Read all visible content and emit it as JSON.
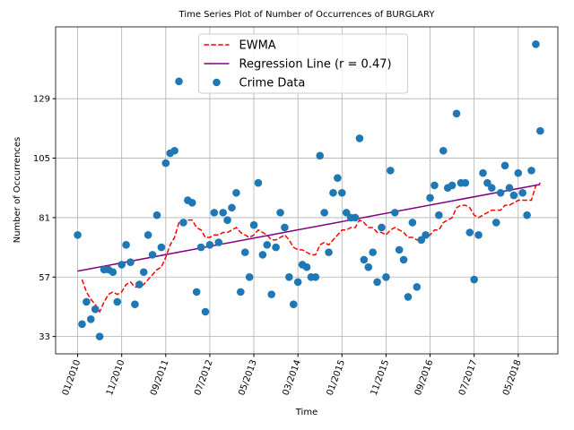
{
  "chart_data": {
    "type": "scatter",
    "title": "Time Series Plot of Number of Occurrences of BURGLARY",
    "xlabel": "Time",
    "ylabel": "Number of Occurrences",
    "x": [
      "2010-01",
      "2010-02",
      "2010-03",
      "2010-04",
      "2010-05",
      "2010-06",
      "2010-07",
      "2010-08",
      "2010-09",
      "2010-10",
      "2010-11",
      "2010-12",
      "2011-01",
      "2011-02",
      "2011-03",
      "2011-04",
      "2011-05",
      "2011-06",
      "2011-07",
      "2011-08",
      "2011-09",
      "2011-10",
      "2011-11",
      "2011-12",
      "2012-01",
      "2012-02",
      "2012-03",
      "2012-04",
      "2012-05",
      "2012-06",
      "2012-07",
      "2012-08",
      "2012-09",
      "2012-10",
      "2012-11",
      "2012-12",
      "2013-01",
      "2013-02",
      "2013-03",
      "2013-04",
      "2013-05",
      "2013-06",
      "2013-07",
      "2013-08",
      "2013-09",
      "2013-10",
      "2013-11",
      "2013-12",
      "2014-01",
      "2014-02",
      "2014-03",
      "2014-04",
      "2014-05",
      "2014-06",
      "2014-07",
      "2014-08",
      "2014-09",
      "2014-10",
      "2014-11",
      "2014-12",
      "2015-01",
      "2015-02",
      "2015-03",
      "2015-04",
      "2015-05",
      "2015-06",
      "2015-07",
      "2015-08",
      "2015-09",
      "2015-10",
      "2015-11",
      "2015-12",
      "2016-01",
      "2016-02",
      "2016-03",
      "2016-04",
      "2016-05",
      "2016-06",
      "2016-07",
      "2016-08",
      "2016-09",
      "2016-10",
      "2016-11",
      "2016-12",
      "2017-01",
      "2017-02",
      "2017-03",
      "2017-04",
      "2017-05",
      "2017-06",
      "2017-07",
      "2017-08",
      "2017-09",
      "2017-10",
      "2017-11",
      "2017-12",
      "2018-01",
      "2018-02",
      "2018-03",
      "2018-04",
      "2018-05",
      "2018-06",
      "2018-07",
      "2018-08",
      "2018-09",
      "2018-10"
    ],
    "series": [
      {
        "name": "EWMA",
        "type": "line",
        "linestyle": "dashed",
        "color": "#ff0000",
        "values": [
          null,
          56,
          51,
          48,
          46,
          43,
          47,
          50,
          51,
          50,
          51,
          54,
          55,
          53,
          53,
          54,
          56,
          58,
          60,
          61,
          65,
          70,
          73,
          79,
          79,
          80,
          80,
          77,
          76,
          73,
          73,
          74,
          74,
          75,
          75,
          76,
          77,
          75,
          74,
          73,
          74,
          76,
          75,
          74,
          72,
          72,
          73,
          74,
          72,
          69,
          68,
          68,
          67,
          66,
          66,
          70,
          71,
          70,
          72,
          74,
          76,
          76,
          77,
          77,
          80,
          79,
          77,
          77,
          75,
          75,
          74,
          76,
          77,
          76,
          75,
          73,
          73,
          72,
          72,
          73,
          74,
          76,
          76,
          79,
          80,
          81,
          85,
          86,
          86,
          85,
          82,
          81,
          82,
          83,
          84,
          84,
          84,
          86,
          86,
          87,
          88,
          88,
          88,
          88,
          94,
          95
        ]
      },
      {
        "name": "Regression Line (r = 0.47)",
        "type": "line",
        "linestyle": "solid",
        "color": "#800080",
        "x": [
          "2010-01",
          "2018-10"
        ],
        "values": [
          59.4,
          94.4
        ]
      },
      {
        "name": "Crime Data",
        "type": "scatter",
        "color": "#1f77b4",
        "values": [
          74,
          38,
          47,
          40,
          44,
          33,
          60,
          60,
          59,
          47,
          62,
          70,
          63,
          46,
          54,
          59,
          74,
          66,
          82,
          69,
          103,
          107,
          108,
          136,
          79,
          88,
          87,
          51,
          69,
          43,
          70,
          83,
          71,
          83,
          80,
          85,
          91,
          51,
          67,
          57,
          78,
          95,
          66,
          70,
          50,
          69,
          83,
          77,
          57,
          46,
          55,
          62,
          61,
          57,
          57,
          106,
          83,
          67,
          91,
          97,
          91,
          83,
          81,
          81,
          113,
          64,
          61,
          67,
          55,
          77,
          57,
          100,
          83,
          68,
          64,
          49,
          79,
          53,
          72,
          74,
          89,
          94,
          82,
          108,
          93,
          94,
          123,
          95,
          95,
          75,
          56,
          74,
          99,
          95,
          93,
          79,
          91,
          102,
          93,
          90,
          99,
          91,
          82,
          100,
          151,
          116
        ]
      }
    ],
    "xlim": [
      "2009-08",
      "2019-02"
    ],
    "xticks": [
      {
        "value": "2010-01",
        "label": "01/2010"
      },
      {
        "value": "2010-11",
        "label": "11/2010"
      },
      {
        "value": "2011-09",
        "label": "09/2011"
      },
      {
        "value": "2012-07",
        "label": "07/2012"
      },
      {
        "value": "2013-05",
        "label": "05/2013"
      },
      {
        "value": "2014-03",
        "label": "03/2014"
      },
      {
        "value": "2015-01",
        "label": "01/2015"
      },
      {
        "value": "2015-11",
        "label": "11/2015"
      },
      {
        "value": "2016-09",
        "label": "09/2016"
      },
      {
        "value": "2017-07",
        "label": "07/2017"
      },
      {
        "value": "2018-05",
        "label": "05/2018"
      }
    ],
    "ylim": [
      26,
      158
    ],
    "yticks": [
      33,
      57,
      81,
      105,
      129
    ],
    "grid": true,
    "legend": "upper center"
  }
}
